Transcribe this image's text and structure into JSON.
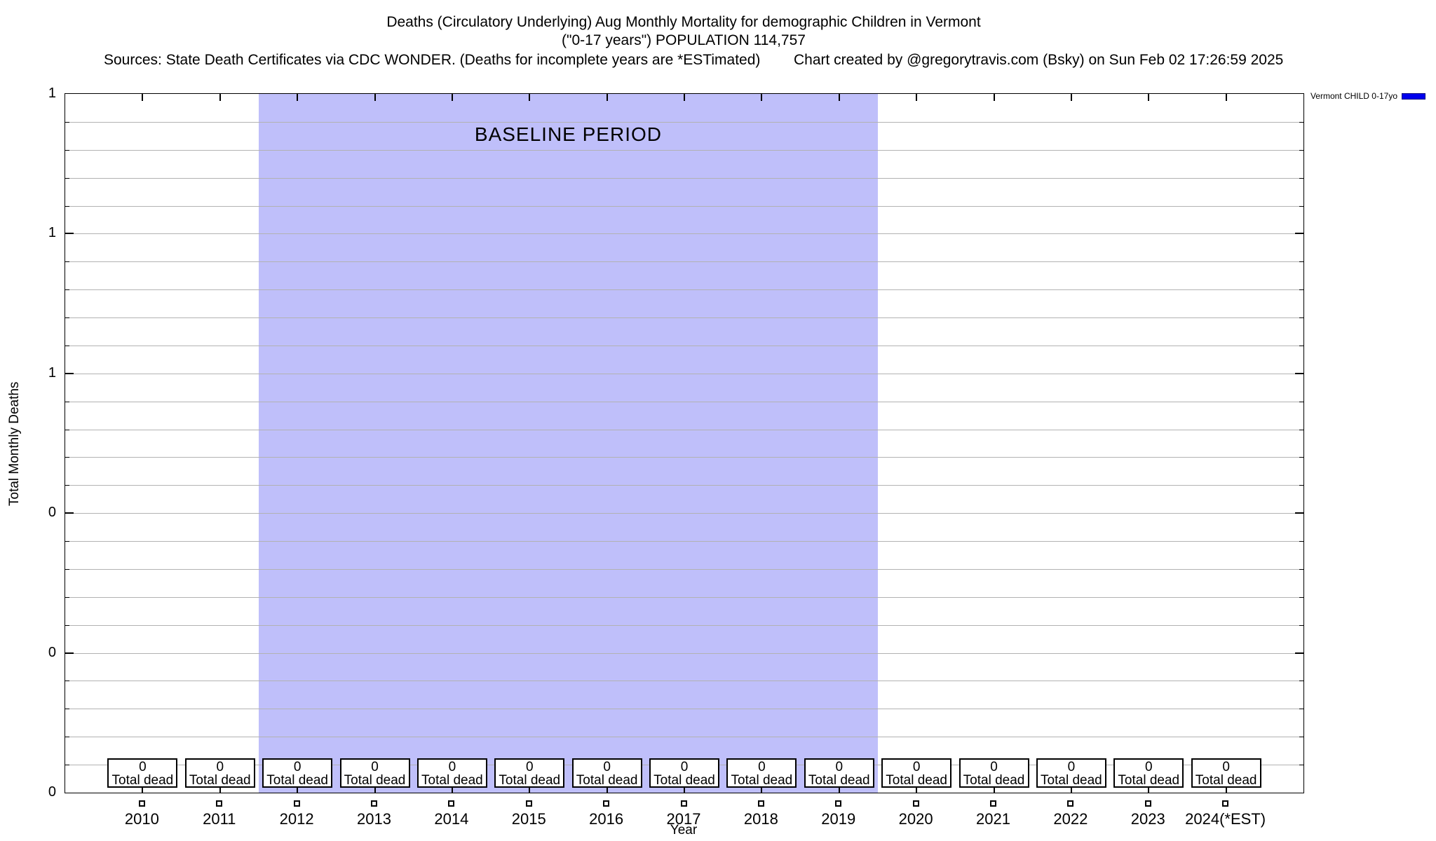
{
  "header": {
    "title_line1": "Deaths (Circulatory Underlying) Aug Monthly Mortality for demographic Children in Vermont",
    "title_line2": "(\"0-17 years\") POPULATION 114,757",
    "sources": "Sources: State Death Certificates via CDC WONDER. (Deaths for incomplete years are *ESTimated)",
    "credit": "Chart created by @gregorytravis.com (Bsky) on Sun Feb 02 17:26:59 2025"
  },
  "legend": {
    "label": "Vermont CHILD 0-17yo",
    "swatch_color": "#0000ee"
  },
  "plot": {
    "baseline_label": "BASELINE PERIOD",
    "baseline_color": "#bfbffa",
    "grid_color": "#b2b2b2",
    "y_axis_title": "Total Monthly Deaths",
    "x_axis_title": "Year",
    "y_tick_labels": [
      "1",
      "1",
      "1",
      "0",
      "0",
      "0"
    ],
    "years": [
      {
        "label": "2010",
        "value": "0",
        "caption": "Total dead"
      },
      {
        "label": "2011",
        "value": "0",
        "caption": "Total dead"
      },
      {
        "label": "2012",
        "value": "0",
        "caption": "Total dead"
      },
      {
        "label": "2013",
        "value": "0",
        "caption": "Total dead"
      },
      {
        "label": "2014",
        "value": "0",
        "caption": "Total dead"
      },
      {
        "label": "2015",
        "value": "0",
        "caption": "Total dead"
      },
      {
        "label": "2016",
        "value": "0",
        "caption": "Total dead"
      },
      {
        "label": "2017",
        "value": "0",
        "caption": "Total dead"
      },
      {
        "label": "2018",
        "value": "0",
        "caption": "Total dead"
      },
      {
        "label": "2019",
        "value": "0",
        "caption": "Total dead"
      },
      {
        "label": "2020",
        "value": "0",
        "caption": "Total dead"
      },
      {
        "label": "2021",
        "value": "0",
        "caption": "Total dead"
      },
      {
        "label": "2022",
        "value": "0",
        "caption": "Total dead"
      },
      {
        "label": "2023",
        "value": "0",
        "caption": "Total dead"
      },
      {
        "label": "2024(*EST)",
        "value": "0",
        "caption": "Total dead"
      }
    ]
  },
  "chart_data": {
    "type": "line",
    "title": "Deaths (Circulatory Underlying) Aug Monthly Mortality for demographic Children in Vermont",
    "subtitle": "(\"0-17 years\") POPULATION 114,757",
    "xlabel": "Year",
    "ylabel": "Total Monthly Deaths",
    "xlim": [
      2009,
      2025
    ],
    "ylim": [
      0,
      1
    ],
    "grid": "horizontal",
    "x": [
      2010,
      2011,
      2012,
      2013,
      2014,
      2015,
      2016,
      2017,
      2018,
      2019,
      2020,
      2021,
      2022,
      2023,
      2024
    ],
    "x_tick_labels": [
      "2010",
      "2011",
      "2012",
      "2013",
      "2014",
      "2015",
      "2016",
      "2017",
      "2018",
      "2019",
      "2020",
      "2021",
      "2022",
      "2023",
      "2024(*EST)"
    ],
    "y_tick_labels_top_to_bottom": [
      "1",
      "1",
      "1",
      "0",
      "0",
      "0"
    ],
    "series": [
      {
        "name": "Vermont CHILD 0-17yo",
        "color": "#0000ee",
        "values": [
          0,
          0,
          0,
          0,
          0,
          0,
          0,
          0,
          0,
          0,
          0,
          0,
          0,
          0,
          0
        ]
      }
    ],
    "point_annotations": {
      "value": "0",
      "caption": "Total dead"
    },
    "baseline_region": {
      "label": "BASELINE PERIOD",
      "x_start": 2011.5,
      "x_end": 2019.5,
      "color": "#bfbffa"
    },
    "legend_position": "top-right-outside"
  }
}
